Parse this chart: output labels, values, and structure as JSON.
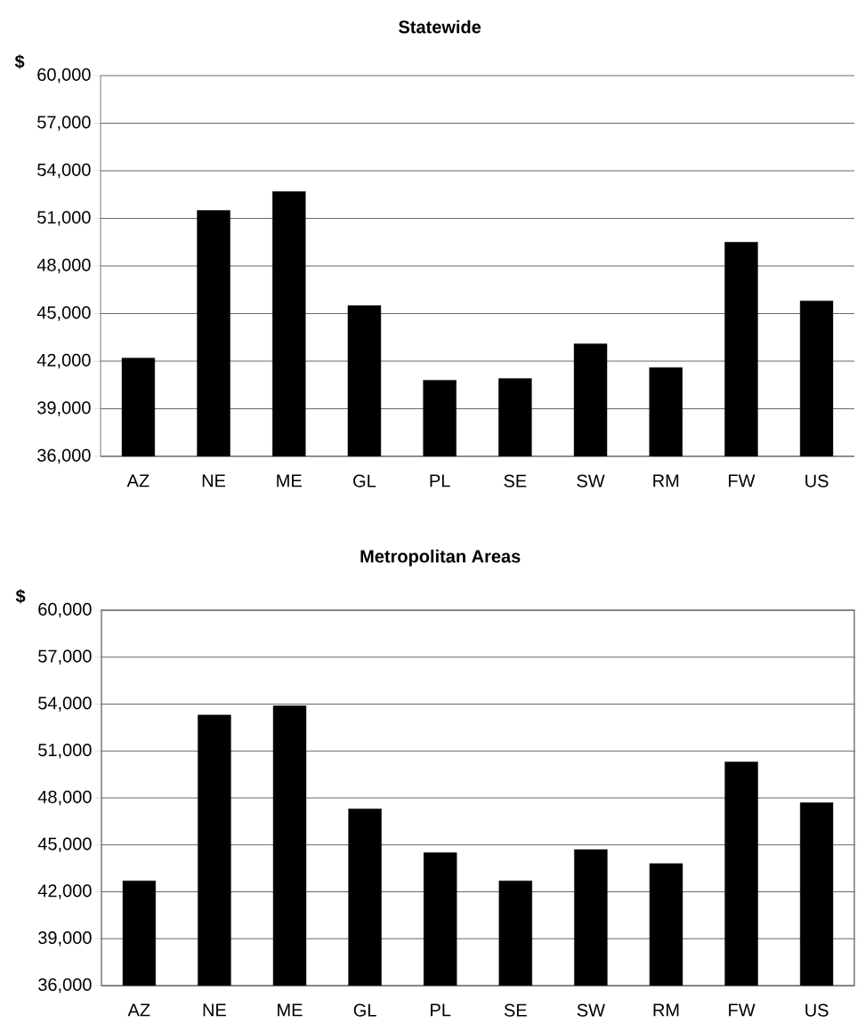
{
  "chart_data": [
    {
      "type": "bar",
      "title": "Statewide",
      "ylabel": "$",
      "categories": [
        "AZ",
        "NE",
        "ME",
        "GL",
        "PL",
        "SE",
        "SW",
        "RM",
        "FW",
        "US"
      ],
      "values": [
        42200,
        51500,
        52700,
        45500,
        40800,
        40900,
        43100,
        41600,
        49500,
        45800
      ],
      "color": "#000000",
      "ylim": [
        36000,
        60000
      ],
      "yticks": [
        {
          "value": 36000,
          "label": "36,000"
        },
        {
          "value": 39000,
          "label": "39,000"
        },
        {
          "value": 42000,
          "label": "42,000"
        },
        {
          "value": 45000,
          "label": "45,000"
        },
        {
          "value": 48000,
          "label": "48,000"
        },
        {
          "value": 51000,
          "label": "51,000"
        },
        {
          "value": 54000,
          "label": "54,000"
        },
        {
          "value": 57000,
          "label": "57,000"
        },
        {
          "value": 60000,
          "label": "60,000"
        }
      ],
      "grid": "y"
    },
    {
      "type": "bar",
      "title": "Metropolitan Areas",
      "ylabel": "$",
      "categories": [
        "AZ",
        "NE",
        "ME",
        "GL",
        "PL",
        "SE",
        "SW",
        "RM",
        "FW",
        "US"
      ],
      "values": [
        42700,
        53300,
        53900,
        47300,
        44500,
        42700,
        44700,
        43800,
        50300,
        47700
      ],
      "color": "#000000",
      "ylim": [
        36000,
        60000
      ],
      "yticks": [
        {
          "value": 36000,
          "label": "36,000"
        },
        {
          "value": 39000,
          "label": "39,000"
        },
        {
          "value": 42000,
          "label": "42,000"
        },
        {
          "value": 45000,
          "label": "45,000"
        },
        {
          "value": 48000,
          "label": "48,000"
        },
        {
          "value": 51000,
          "label": "51,000"
        },
        {
          "value": 54000,
          "label": "54,000"
        },
        {
          "value": 57000,
          "label": "57,000"
        },
        {
          "value": 60000,
          "label": "60,000"
        }
      ],
      "grid": "y"
    }
  ]
}
